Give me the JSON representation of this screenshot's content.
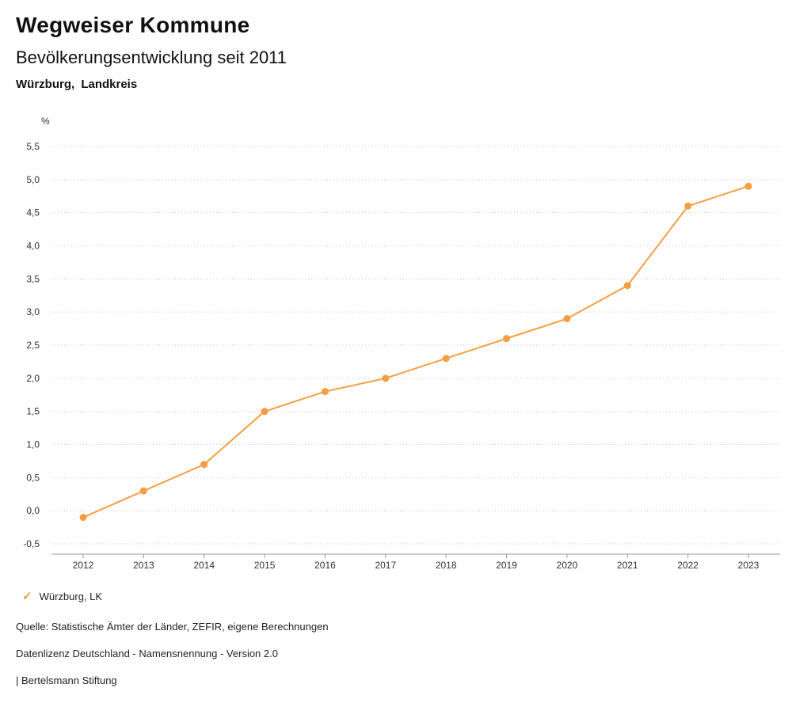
{
  "header": {
    "title": "Wegweiser Kommune",
    "subtitle": "Bevölkerungsentwicklung seit 2011",
    "region": "Würzburg, Landkreis"
  },
  "chart_data": {
    "type": "line",
    "unit_label": "%",
    "x": [
      2012,
      2013,
      2014,
      2015,
      2016,
      2017,
      2018,
      2019,
      2020,
      2021,
      2022,
      2023
    ],
    "series": [
      {
        "name": "Würzburg, LK",
        "color": "#f49e40",
        "values": [
          -0.1,
          0.3,
          0.7,
          1.5,
          1.8,
          2.0,
          2.3,
          2.6,
          2.9,
          3.4,
          4.6,
          4.9
        ]
      }
    ],
    "ylim": [
      -0.5,
      5.5
    ],
    "ytick_step": 0.5,
    "ytick_labels": [
      "5,5",
      "5,0",
      "4,5",
      "4,0",
      "3,5",
      "3,0",
      "2,5",
      "2,0",
      "1,5",
      "1,0",
      "0,5",
      "0,0",
      "-0,5"
    ],
    "grid": "dotted-horizontal",
    "legend_position": "bottom-left",
    "decimal_separator": ","
  },
  "footer": {
    "source": "Quelle: Statistische Ämter der Länder, ZEFIR, eigene Berechnungen",
    "license": "Datenlizenz Deutschland - Namensnennung - Version 2.0",
    "attribution": "| Bertelsmann Stiftung"
  },
  "colors": {
    "series_orange": "#f49e40",
    "gridline": "#c3c3c3",
    "axis": "#999999",
    "tick_text": "#333333"
  }
}
